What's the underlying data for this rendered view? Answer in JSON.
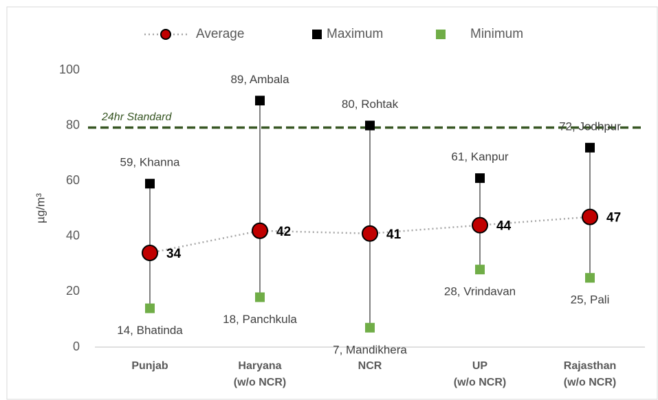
{
  "chart_data": {
    "type": "range-line",
    "categories": [
      "Punjab",
      "Haryana\n(w/o NCR)",
      "NCR",
      "UP\n(w/o NCR)",
      "Rajasthan\n(w/o NCR)"
    ],
    "series": [
      {
        "name": "Average",
        "color": "#c00000",
        "values": [
          34,
          42,
          41,
          44,
          47
        ]
      },
      {
        "name": "Maximum",
        "color": "#000000",
        "values": [
          59,
          89,
          80,
          61,
          72
        ],
        "value_labels": [
          "59, Khanna",
          "89, Ambala",
          "80, Rohtak",
          "61, Kanpur",
          "72, Jodhpur"
        ]
      },
      {
        "name": "Minimum",
        "color": "#70ad47",
        "values": [
          14,
          18,
          7,
          28,
          25
        ],
        "value_labels": [
          "14, Bhatinda",
          "18, Panchkula",
          "7, Mandikhera",
          "28, Vrindavan",
          "25, Pali"
        ]
      }
    ],
    "y_label": "µg/m³",
    "ylim": [
      0,
      100
    ],
    "yticks": [
      0,
      20,
      40,
      60,
      80,
      100
    ],
    "standard": {
      "label": "24hr Standard",
      "value": 80,
      "color": "#375623"
    },
    "legend": "top"
  }
}
